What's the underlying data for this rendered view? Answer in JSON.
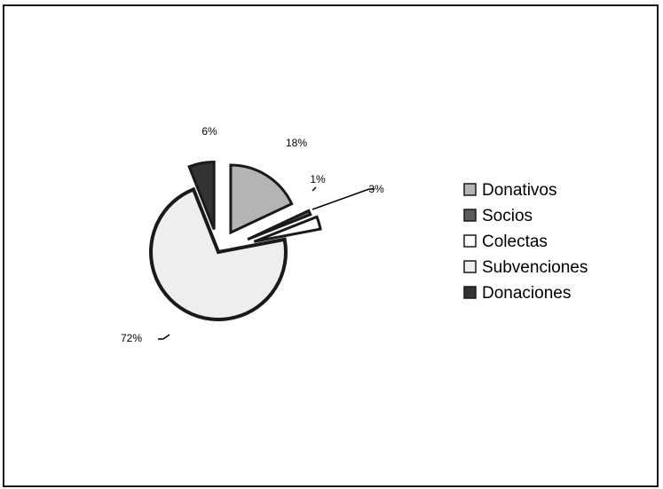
{
  "chart_data": {
    "type": "pie",
    "title": "",
    "slices": [
      {
        "label": "Donativos",
        "value": 18,
        "display": "18%",
        "color": "#b4b4b4"
      },
      {
        "label": "Socios",
        "value": 1,
        "display": "1%",
        "color": "#5a5a5a"
      },
      {
        "label": "Colectas",
        "value": 3,
        "display": "3%",
        "color": "#ffffff"
      },
      {
        "label": "Subvenciones",
        "value": 72,
        "display": "72%",
        "color": "#eeeeee"
      },
      {
        "label": "Donaciones",
        "value": 6,
        "display": "6%",
        "color": "#333333"
      }
    ],
    "legend_position": "right",
    "exploded": true
  }
}
